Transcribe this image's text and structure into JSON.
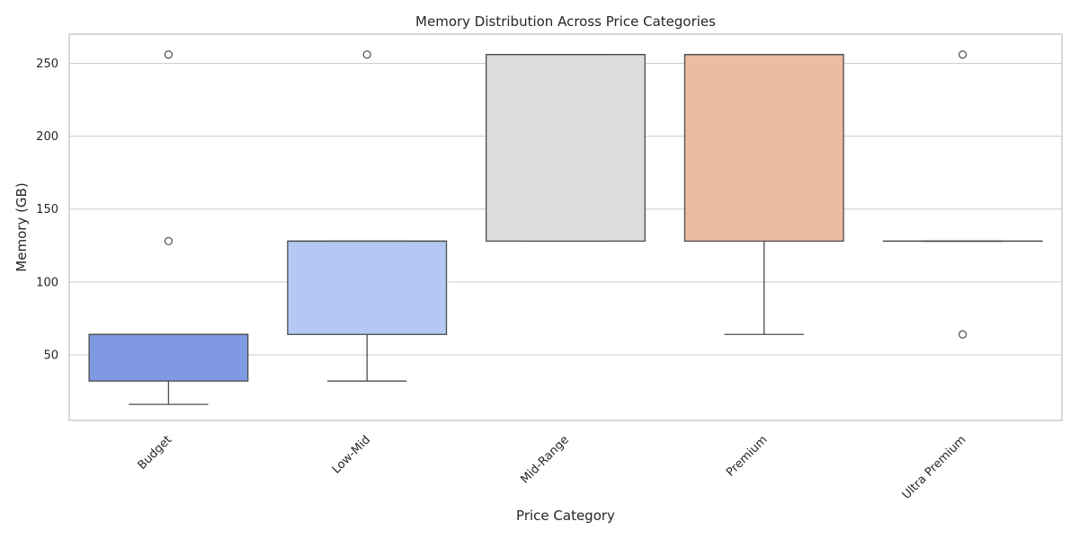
{
  "chart_data": {
    "type": "box",
    "title": "Memory Distribution Across Price Categories",
    "xlabel": "Price Category",
    "ylabel": "Memory (GB)",
    "ylim": [
      5,
      270
    ],
    "yticks": [
      50,
      100,
      150,
      200,
      250
    ],
    "grid": true,
    "categories": [
      "Budget",
      "Low-Mid",
      "Mid-Range",
      "Premium",
      "Ultra Premium"
    ],
    "boxes": [
      {
        "category": "Budget",
        "whisker_low": 16,
        "q1": 32,
        "median": 64,
        "q3": 64,
        "whisker_high": 64,
        "outliers": [
          128,
          256
        ],
        "color": "#7f99e2"
      },
      {
        "category": "Low-Mid",
        "whisker_low": 32,
        "q1": 64,
        "median": 128,
        "q3": 128,
        "whisker_high": 128,
        "outliers": [
          256
        ],
        "color": "#b4c8f3"
      },
      {
        "category": "Mid-Range",
        "whisker_low": 128,
        "q1": 128,
        "median": 256,
        "q3": 256,
        "whisker_high": 256,
        "outliers": [],
        "color": "#dcdcdc"
      },
      {
        "category": "Premium",
        "whisker_low": 64,
        "q1": 128,
        "median": 256,
        "q3": 256,
        "whisker_high": 256,
        "outliers": [],
        "color": "#ebbba4"
      },
      {
        "category": "Ultra Premium",
        "whisker_low": 128,
        "q1": 128,
        "median": 128,
        "q3": 128,
        "whisker_high": 128,
        "outliers": [
          64,
          256
        ],
        "color": "#d6ad99"
      }
    ]
  }
}
